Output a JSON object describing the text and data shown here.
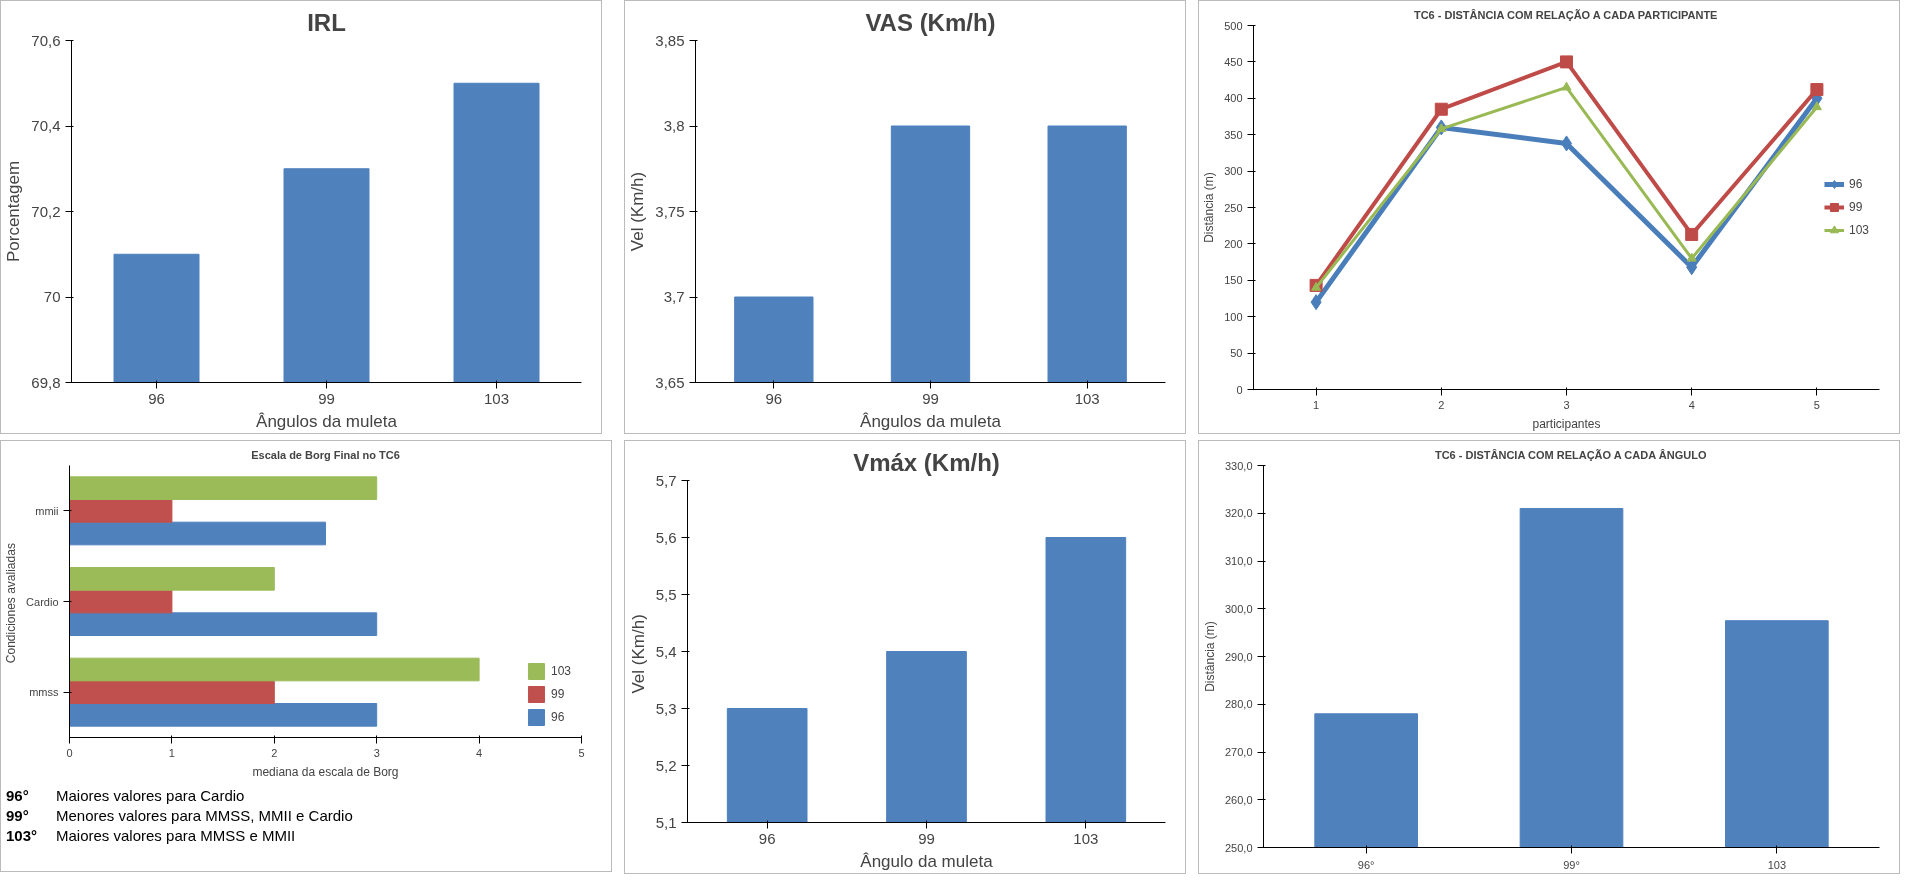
{
  "chart_data": [
    {
      "type": "bar",
      "title": "IRL",
      "xlabel": "Ângulos da muleta",
      "ylabel": "Porcentagem",
      "categories": [
        "96",
        "99",
        "103"
      ],
      "values": [
        70.1,
        70.3,
        70.5
      ],
      "color": "#4f81bd",
      "ylim": [
        69.8,
        70.6
      ],
      "yticks": [
        {
          "value": 69.8,
          "label": "69,8"
        },
        {
          "value": 70,
          "label": "70"
        },
        {
          "value": 70.2,
          "label": "70,2"
        },
        {
          "value": 70.4,
          "label": "70,4"
        },
        {
          "value": 70.6,
          "label": "70,6"
        }
      ]
    },
    {
      "type": "bar",
      "title": "VAS (Km/h)",
      "xlabel": "Ângulos da muleta",
      "ylabel": "Vel (Km/h)",
      "categories": [
        "96",
        "99",
        "103"
      ],
      "values": [
        3.7,
        3.8,
        3.8
      ],
      "color": "#4f81bd",
      "ylim": [
        3.65,
        3.85
      ],
      "yticks": [
        {
          "value": 3.65,
          "label": "3,65"
        },
        {
          "value": 3.7,
          "label": "3,7"
        },
        {
          "value": 3.75,
          "label": "3,75"
        },
        {
          "value": 3.8,
          "label": "3,8"
        },
        {
          "value": 3.85,
          "label": "3,85"
        }
      ]
    },
    {
      "type": "line",
      "title": "TC6 - DISTÂNCIA COM RELAÇÃO A CADA PARTICIPANTE",
      "xlabel": "participantes",
      "ylabel": "Distância (m)",
      "categories": [
        "1",
        "2",
        "3",
        "4",
        "5"
      ],
      "ylim": [
        0,
        500
      ],
      "yticks": [
        0,
        50,
        100,
        150,
        200,
        250,
        300,
        350,
        400,
        450,
        500
      ],
      "legend": "right",
      "series": [
        {
          "name": "96",
          "color": "#4a7ebb",
          "marker": "diamond",
          "values": [
            120,
            360,
            338,
            168,
            400
          ]
        },
        {
          "name": "99",
          "color": "#be4b48",
          "marker": "square",
          "values": [
            143,
            385,
            450,
            213,
            412
          ]
        },
        {
          "name": "103",
          "color": "#98b954",
          "marker": "triangle",
          "values": [
            140,
            358,
            415,
            180,
            388
          ]
        }
      ]
    },
    {
      "type": "bar",
      "orientation": "horizontal",
      "title": "Escala de Borg Final no TC6",
      "xlabel": "mediana da escala de Borg",
      "ylabel": "Condiciones  avaliadas",
      "categories": [
        "mmii",
        "Cardio",
        "mmss"
      ],
      "xlim": [
        0,
        5
      ],
      "xticks": [
        0,
        1,
        2,
        3,
        4,
        5
      ],
      "legend": "right",
      "series": [
        {
          "name": "96",
          "color": "#4f81bd",
          "values": [
            2.5,
            3,
            3
          ]
        },
        {
          "name": "99",
          "color": "#c0504d",
          "values": [
            1,
            1,
            2
          ]
        },
        {
          "name": "103",
          "color": "#9bbb59",
          "values": [
            3,
            2,
            4
          ]
        }
      ],
      "annotations": [
        "96° Maiores valores para Cardio",
        "99° Menores valores para MMSS, MMII e Cardio",
        "103° Maiores valores para MMSS e MMII"
      ]
    },
    {
      "type": "bar",
      "title": "Vmáx (Km/h)",
      "xlabel": "Ângulo da muleta",
      "ylabel": "Vel  (Km/h)",
      "categories": [
        "96",
        "99",
        "103"
      ],
      "values": [
        5.3,
        5.4,
        5.6
      ],
      "color": "#4f81bd",
      "ylim": [
        5.1,
        5.7
      ],
      "yticks": [
        {
          "value": 5.1,
          "label": "5,1"
        },
        {
          "value": 5.2,
          "label": "5,2"
        },
        {
          "value": 5.3,
          "label": "5,3"
        },
        {
          "value": 5.4,
          "label": "5,4"
        },
        {
          "value": 5.5,
          "label": "5,5"
        },
        {
          "value": 5.6,
          "label": "5,6"
        },
        {
          "value": 5.7,
          "label": "5,7"
        }
      ]
    },
    {
      "type": "bar",
      "title": "TC6 - DISTÂNCIA COM RELAÇÃO A CADA ÂNGULO",
      "ylabel": "Distância (m)",
      "categories": [
        "96°",
        "99°",
        "103"
      ],
      "values": [
        278,
        321,
        297.5
      ],
      "color": "#4f81bd",
      "ylim": [
        250,
        330
      ],
      "yticks": [
        {
          "value": 250,
          "label": "250,0"
        },
        {
          "value": 260,
          "label": "260,0"
        },
        {
          "value": 270,
          "label": "270,0"
        },
        {
          "value": 280,
          "label": "280,0"
        },
        {
          "value": 290,
          "label": "290,0"
        },
        {
          "value": 300,
          "label": "300,0"
        },
        {
          "value": 310,
          "label": "310,0"
        },
        {
          "value": 320,
          "label": "320,0"
        },
        {
          "value": 330,
          "label": "330,0"
        }
      ]
    }
  ]
}
